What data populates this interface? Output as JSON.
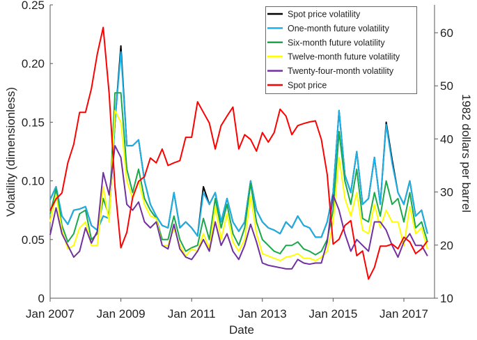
{
  "chart_data": {
    "type": "line",
    "xlabel": "Date",
    "ylabel": "Volatility (dimensionless)",
    "ylabel_right": "1982 dollars per barrel",
    "ylim": [
      0,
      0.25
    ],
    "ylim_right": [
      10,
      64
    ],
    "yticks": [
      "0",
      "0.05",
      "0.10",
      "0.15",
      "0.20",
      "0.25"
    ],
    "yticks_right": [
      "10",
      "20",
      "30",
      "40",
      "50",
      "60"
    ],
    "xticks": [
      "Jan 2007",
      "Jan 2009",
      "Jan 2011",
      "Jan 2013",
      "Jan 2015",
      "Jan 2017"
    ],
    "grid": false,
    "legend_position": "top-right",
    "x": [
      "2007-01",
      "2007-03",
      "2007-05",
      "2007-07",
      "2007-09",
      "2007-11",
      "2008-01",
      "2008-03",
      "2008-05",
      "2008-07",
      "2008-09",
      "2008-11",
      "2009-01",
      "2009-03",
      "2009-05",
      "2009-07",
      "2009-09",
      "2009-11",
      "2010-01",
      "2010-03",
      "2010-05",
      "2010-07",
      "2010-09",
      "2010-11",
      "2011-01",
      "2011-03",
      "2011-05",
      "2011-07",
      "2011-09",
      "2011-11",
      "2012-01",
      "2012-03",
      "2012-05",
      "2012-07",
      "2012-09",
      "2012-11",
      "2013-01",
      "2013-03",
      "2013-05",
      "2013-07",
      "2013-09",
      "2013-11",
      "2014-01",
      "2014-03",
      "2014-05",
      "2014-07",
      "2014-09",
      "2014-11",
      "2015-01",
      "2015-03",
      "2015-05",
      "2015-07",
      "2015-09",
      "2015-11",
      "2016-01",
      "2016-03",
      "2016-05",
      "2016-07",
      "2016-09",
      "2016-11",
      "2017-01",
      "2017-03",
      "2017-05",
      "2017-07",
      "2017-09"
    ],
    "series": [
      {
        "name": "Spot price volatility",
        "color": "#000000",
        "axis": "left",
        "values": [
          0.084,
          0.095,
          0.07,
          0.063,
          0.075,
          0.076,
          0.078,
          0.062,
          0.058,
          0.07,
          0.068,
          0.15,
          0.215,
          0.13,
          0.13,
          0.135,
          0.1,
          0.08,
          0.07,
          0.062,
          0.06,
          0.09,
          0.06,
          0.065,
          0.06,
          0.053,
          0.095,
          0.08,
          0.09,
          0.065,
          0.085,
          0.065,
          0.057,
          0.065,
          0.1,
          0.075,
          0.065,
          0.06,
          0.058,
          0.055,
          0.065,
          0.06,
          0.07,
          0.062,
          0.06,
          0.052,
          0.052,
          0.065,
          0.09,
          0.16,
          0.105,
          0.09,
          0.125,
          0.08,
          0.085,
          0.12,
          0.08,
          0.15,
          0.118,
          0.09,
          0.08,
          0.1,
          0.07,
          0.075,
          0.055
        ]
      },
      {
        "name": "One-month future volatility",
        "color": "#1ab0e8",
        "axis": "left",
        "values": [
          0.084,
          0.095,
          0.07,
          0.063,
          0.075,
          0.076,
          0.078,
          0.062,
          0.058,
          0.07,
          0.068,
          0.15,
          0.21,
          0.13,
          0.13,
          0.135,
          0.1,
          0.08,
          0.07,
          0.062,
          0.06,
          0.09,
          0.06,
          0.065,
          0.06,
          0.053,
          0.09,
          0.08,
          0.09,
          0.065,
          0.085,
          0.065,
          0.057,
          0.065,
          0.1,
          0.075,
          0.065,
          0.06,
          0.058,
          0.055,
          0.065,
          0.06,
          0.07,
          0.062,
          0.06,
          0.052,
          0.052,
          0.065,
          0.09,
          0.16,
          0.105,
          0.09,
          0.125,
          0.08,
          0.085,
          0.12,
          0.08,
          0.148,
          0.115,
          0.09,
          0.08,
          0.1,
          0.07,
          0.075,
          0.055
        ]
      },
      {
        "name": "Six-month future volatility",
        "color": "#1aa84a",
        "axis": "left",
        "values": [
          0.072,
          0.093,
          0.062,
          0.048,
          0.055,
          0.072,
          0.075,
          0.05,
          0.055,
          0.085,
          0.07,
          0.175,
          0.175,
          0.11,
          0.09,
          0.11,
          0.085,
          0.075,
          0.068,
          0.05,
          0.05,
          0.07,
          0.05,
          0.04,
          0.043,
          0.045,
          0.068,
          0.05,
          0.085,
          0.06,
          0.08,
          0.055,
          0.045,
          0.06,
          0.098,
          0.065,
          0.05,
          0.045,
          0.04,
          0.038,
          0.045,
          0.045,
          0.048,
          0.042,
          0.04,
          0.037,
          0.04,
          0.05,
          0.075,
          0.142,
          0.1,
          0.08,
          0.11,
          0.068,
          0.065,
          0.09,
          0.07,
          0.1,
          0.08,
          0.085,
          0.065,
          0.09,
          0.06,
          0.065,
          0.048
        ]
      },
      {
        "name": "Twelve-month future volatility",
        "color": "#ffff00",
        "axis": "left",
        "values": [
          0.065,
          0.088,
          0.058,
          0.042,
          0.045,
          0.06,
          0.065,
          0.045,
          0.045,
          0.095,
          0.065,
          0.16,
          0.15,
          0.1,
          0.085,
          0.1,
          0.08,
          0.07,
          0.068,
          0.045,
          0.045,
          0.06,
          0.045,
          0.036,
          0.042,
          0.04,
          0.055,
          0.042,
          0.078,
          0.05,
          0.072,
          0.048,
          0.04,
          0.05,
          0.087,
          0.055,
          0.038,
          0.036,
          0.034,
          0.032,
          0.035,
          0.036,
          0.038,
          0.034,
          0.034,
          0.032,
          0.035,
          0.04,
          0.065,
          0.12,
          0.085,
          0.07,
          0.09,
          0.058,
          0.055,
          0.08,
          0.06,
          0.075,
          0.065,
          0.065,
          0.045,
          0.078,
          0.055,
          0.06,
          0.042
        ]
      },
      {
        "name": "Twenty-four-month volatility",
        "color": "#7030a0",
        "axis": "left",
        "values": [
          0.054,
          0.077,
          0.055,
          0.045,
          0.035,
          0.04,
          0.06,
          0.047,
          0.057,
          0.107,
          0.088,
          0.13,
          0.12,
          0.08,
          0.075,
          0.082,
          0.065,
          0.06,
          0.065,
          0.045,
          0.042,
          0.063,
          0.042,
          0.035,
          0.033,
          0.04,
          0.05,
          0.04,
          0.065,
          0.045,
          0.055,
          0.04,
          0.033,
          0.045,
          0.063,
          0.048,
          0.03,
          0.028,
          0.027,
          0.026,
          0.025,
          0.025,
          0.033,
          0.03,
          0.029,
          0.03,
          0.03,
          0.048,
          0.088,
          0.075,
          0.055,
          0.04,
          0.05,
          0.045,
          0.04,
          0.065,
          0.065,
          0.058,
          0.045,
          0.035,
          0.048,
          0.055,
          0.045,
          0.045,
          0.036
        ]
      },
      {
        "name": "Spot price",
        "color": "#ff0000",
        "axis": "right",
        "values": [
          26.5,
          28.7,
          29.8,
          35.5,
          39,
          45,
          45,
          49.5,
          56,
          61,
          48.6,
          31,
          19.5,
          22.4,
          29,
          32,
          32.9,
          36.4,
          35.5,
          38.1,
          35,
          35.5,
          35.9,
          40.3,
          40.3,
          47,
          45,
          43,
          38.1,
          42.5,
          44.3,
          46,
          38.1,
          40.8,
          39.9,
          37.7,
          41.2,
          39.4,
          41.2,
          45.6,
          44.3,
          40.8,
          42.5,
          42.9,
          43.2,
          43.4,
          39.9,
          33.3,
          20.2,
          21.1,
          23.7,
          24.6,
          18,
          18.9,
          13.6,
          15.8,
          19.8,
          19.8,
          20.2,
          19.3,
          21.5,
          20.6,
          18.4,
          19.3,
          20.8
        ]
      }
    ]
  }
}
